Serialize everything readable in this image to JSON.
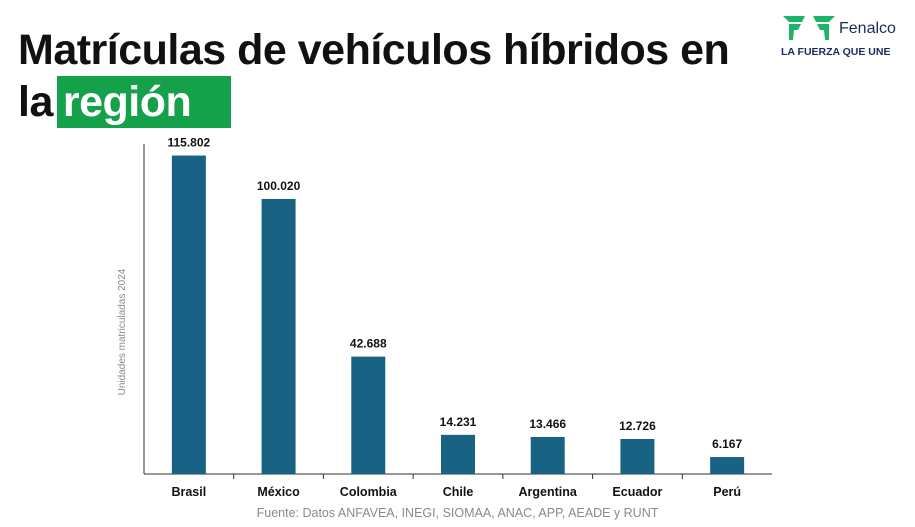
{
  "header": {
    "title_line1": "Matrículas de vehículos híbridos en",
    "title_line2_prefix": "la",
    "title_highlight": "región",
    "highlight_color": "#15a14a"
  },
  "logo": {
    "name": "Fenalco",
    "tagline": "LA FUERZA QUE UNE",
    "brand_color": "#1e2a5a",
    "mark_color": "#1db36b"
  },
  "chart_data": {
    "type": "bar",
    "categories": [
      "Brasil",
      "México",
      "Colombia",
      "Chile",
      "Argentina",
      "Ecuador",
      "Perú"
    ],
    "values": [
      115802,
      100020,
      42688,
      14231,
      13466,
      12726,
      6167
    ],
    "value_labels": [
      "115.802",
      "100.020",
      "42.688",
      "14.231",
      "13.466",
      "12.726",
      "6.167"
    ],
    "ylabel": "Unidades matriculadas 2024",
    "ylim": [
      0,
      120000
    ],
    "bar_color": "#186384",
    "grid": false
  },
  "footer": {
    "source": "Fuente: Datos  ANFAVEA, INEGI, SIOMAA, ANAC, APP, AEADE y RUNT"
  }
}
